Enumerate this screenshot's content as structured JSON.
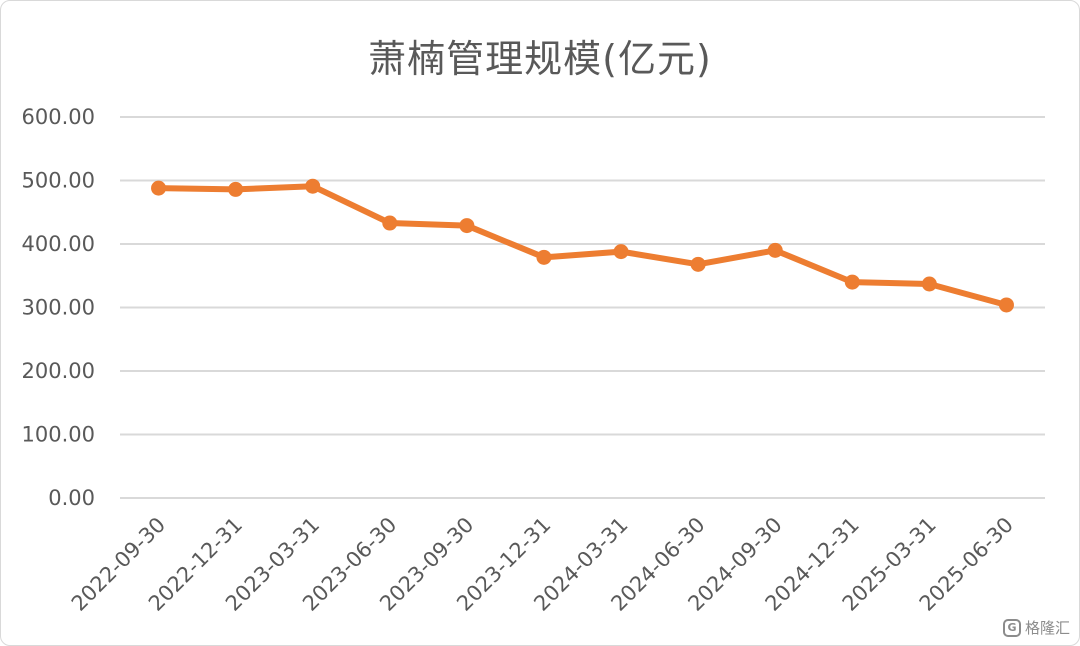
{
  "chart_data": {
    "type": "line",
    "title": "萧楠管理规模(亿元)",
    "xlabel": "",
    "ylabel": "",
    "ylim": [
      0,
      600
    ],
    "yticks": [
      "0.00",
      "100.00",
      "200.00",
      "300.00",
      "400.00",
      "500.00",
      "600.00"
    ],
    "grid": true,
    "legend": "none",
    "categories": [
      "2022-09-30",
      "2022-12-31",
      "2023-03-31",
      "2023-06-30",
      "2023-09-30",
      "2023-12-31",
      "2024-03-31",
      "2024-06-30",
      "2024-09-30",
      "2024-12-31",
      "2025-03-31",
      "2025-06-30"
    ],
    "series": [
      {
        "values": [
          488,
          486,
          491,
          433,
          429,
          379,
          388,
          368,
          390,
          340,
          337,
          304
        ],
        "color": "#ed7d31"
      }
    ]
  },
  "watermark": {
    "icon": "gelonghui-logo-icon",
    "text": "格隆汇"
  }
}
